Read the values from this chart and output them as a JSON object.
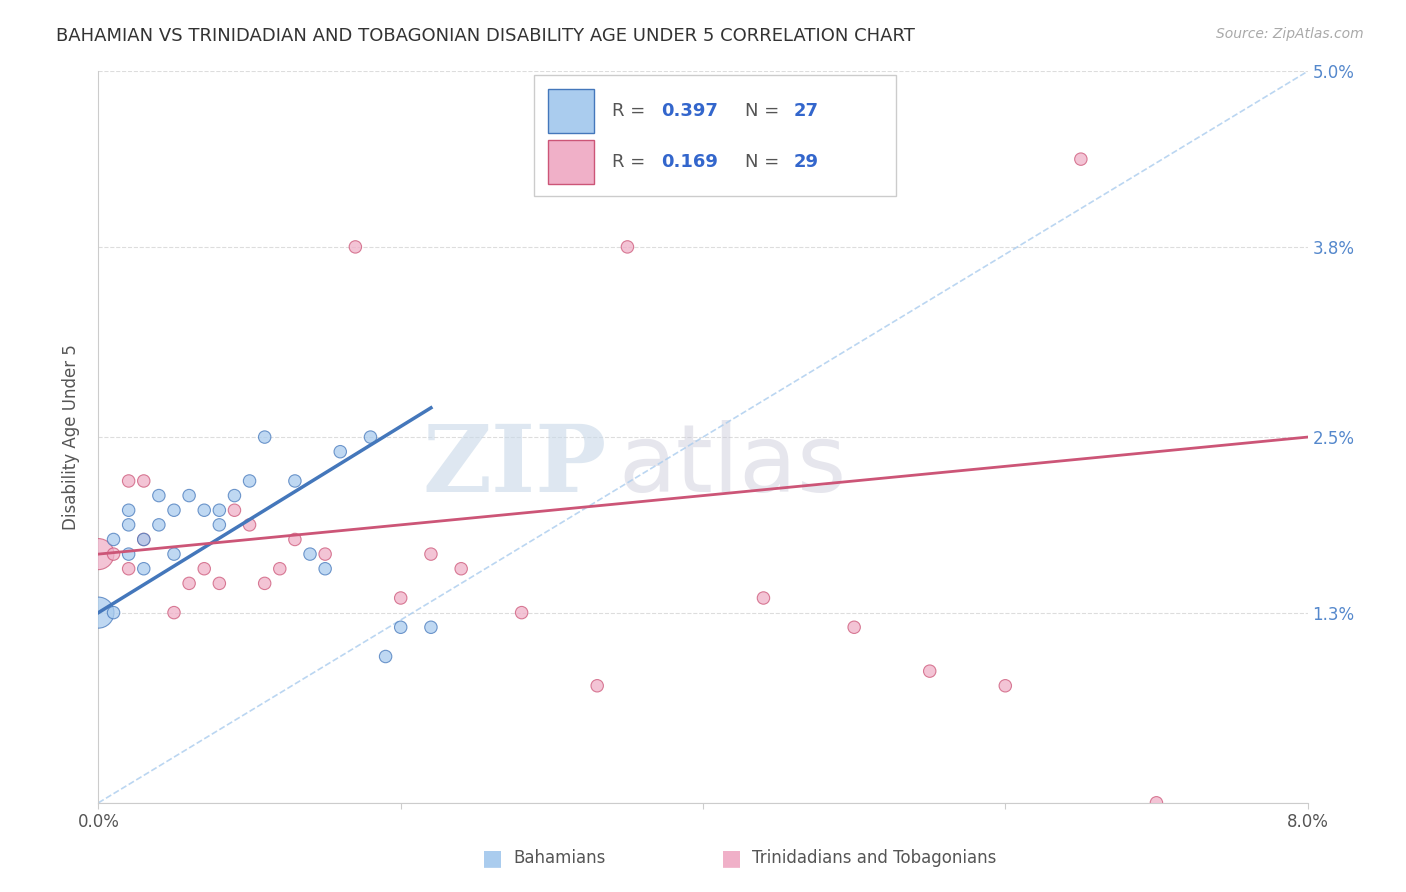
{
  "title": "BAHAMIAN VS TRINIDADIAN AND TOBAGONIAN DISABILITY AGE UNDER 5 CORRELATION CHART",
  "source": "Source: ZipAtlas.com",
  "ylabel": "Disability Age Under 5",
  "xlim": [
    0.0,
    0.08
  ],
  "ylim": [
    0.0,
    0.05
  ],
  "color_blue": "#aaccee",
  "color_pink": "#f0b0c8",
  "line_blue": "#4477bb",
  "line_pink": "#cc5577",
  "line_dashed_color": "#aaccee",
  "background": "#ffffff",
  "grid_color": "#dddddd",
  "bahamian_R": "0.397",
  "bahamian_N": "27",
  "trinidadian_R": "0.169",
  "trinidadian_N": "29",
  "legend_labels": [
    "Bahamians",
    "Trinidadians and Tobagonians"
  ],
  "watermark_zip": "ZIP",
  "watermark_atlas": "atlas",
  "bahamian_x": [
    0.0,
    0.001,
    0.001,
    0.002,
    0.002,
    0.002,
    0.003,
    0.003,
    0.004,
    0.004,
    0.005,
    0.005,
    0.006,
    0.007,
    0.008,
    0.008,
    0.009,
    0.01,
    0.011,
    0.013,
    0.014,
    0.015,
    0.016,
    0.018,
    0.019,
    0.02,
    0.022
  ],
  "bahamian_y": [
    0.013,
    0.013,
    0.018,
    0.019,
    0.02,
    0.017,
    0.018,
    0.016,
    0.019,
    0.021,
    0.02,
    0.017,
    0.021,
    0.02,
    0.02,
    0.019,
    0.021,
    0.022,
    0.025,
    0.022,
    0.017,
    0.016,
    0.024,
    0.025,
    0.01,
    0.012,
    0.012
  ],
  "bahamian_sizes": [
    500,
    80,
    80,
    80,
    80,
    80,
    80,
    80,
    80,
    80,
    80,
    80,
    80,
    80,
    80,
    80,
    80,
    80,
    80,
    80,
    80,
    80,
    80,
    80,
    80,
    80,
    80
  ],
  "trinidadian_x": [
    0.0,
    0.001,
    0.002,
    0.002,
    0.003,
    0.003,
    0.005,
    0.006,
    0.007,
    0.008,
    0.009,
    0.01,
    0.011,
    0.012,
    0.013,
    0.015,
    0.017,
    0.02,
    0.022,
    0.024,
    0.028,
    0.033,
    0.035,
    0.044,
    0.05,
    0.055,
    0.06,
    0.065,
    0.07
  ],
  "trinidadian_y": [
    0.017,
    0.017,
    0.016,
    0.022,
    0.022,
    0.018,
    0.013,
    0.015,
    0.016,
    0.015,
    0.02,
    0.019,
    0.015,
    0.016,
    0.018,
    0.017,
    0.038,
    0.014,
    0.017,
    0.016,
    0.013,
    0.008,
    0.038,
    0.014,
    0.012,
    0.009,
    0.008,
    0.044,
    0.0
  ],
  "trinidadian_sizes": [
    500,
    80,
    80,
    80,
    80,
    80,
    80,
    80,
    80,
    80,
    80,
    80,
    80,
    80,
    80,
    80,
    80,
    80,
    80,
    80,
    80,
    80,
    80,
    80,
    80,
    80,
    80,
    80,
    80
  ],
  "blue_line_x": [
    0.0,
    0.022
  ],
  "blue_line_y": [
    0.013,
    0.027
  ],
  "pink_line_x": [
    0.0,
    0.08
  ],
  "pink_line_y": [
    0.017,
    0.025
  ],
  "dash_line_x": [
    0.0,
    0.08
  ],
  "dash_line_y": [
    0.0,
    0.05
  ]
}
